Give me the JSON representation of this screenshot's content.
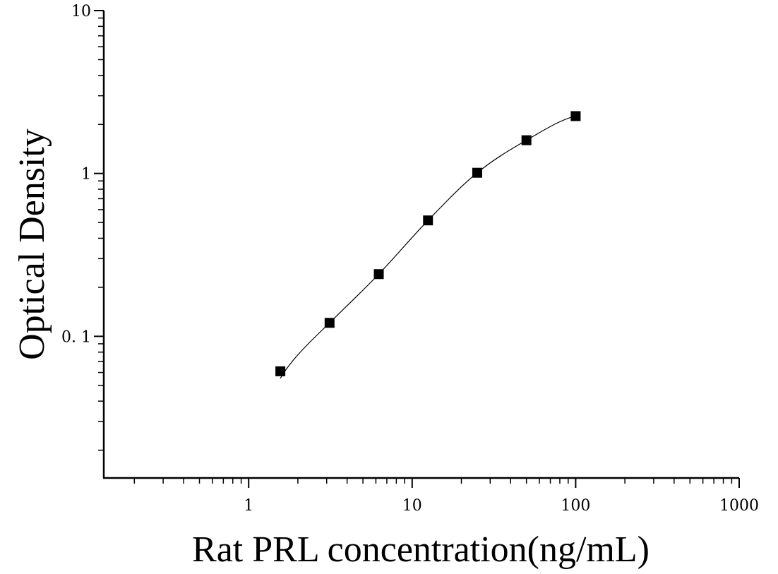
{
  "chart_data": {
    "type": "scatter",
    "xlabel": "Rat PRL concentration(ng/mL)",
    "ylabel": "Optical Density",
    "x_scale": "log",
    "y_scale": "log",
    "xlim": [
      0.13,
      1000
    ],
    "ylim": [
      0.0135,
      10
    ],
    "x_ticks": [
      {
        "value": 1,
        "label": "1"
      },
      {
        "value": 10,
        "label": "10"
      },
      {
        "value": 100,
        "label": "100"
      },
      {
        "value": 1000,
        "label": "1000"
      }
    ],
    "y_ticks": [
      {
        "value": 0.1,
        "label": "0. 1"
      },
      {
        "value": 1,
        "label": "1"
      },
      {
        "value": 10,
        "label": "10"
      }
    ],
    "grid": false,
    "points": [
      {
        "x": 1.5625,
        "y": 0.061
      },
      {
        "x": 3.125,
        "y": 0.121
      },
      {
        "x": 6.25,
        "y": 0.241
      },
      {
        "x": 12.5,
        "y": 0.515
      },
      {
        "x": 25,
        "y": 1.01
      },
      {
        "x": 50,
        "y": 1.6
      },
      {
        "x": 100,
        "y": 2.25
      }
    ],
    "fit_curve": true,
    "colors": {
      "marker": "#000000",
      "line": "#000000"
    }
  }
}
